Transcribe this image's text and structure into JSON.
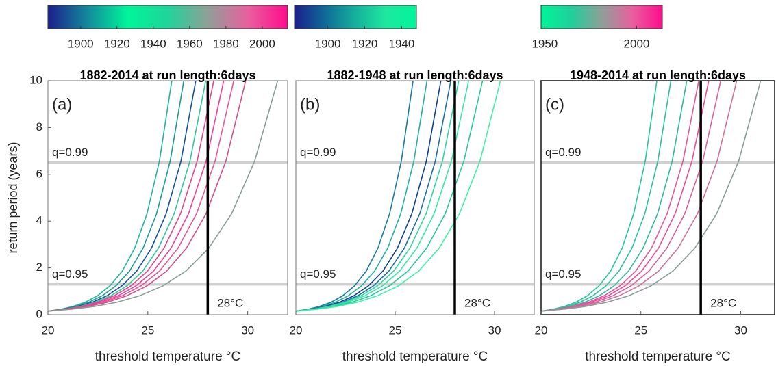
{
  "chart_data": [
    {
      "type": "line",
      "title": "1882-2014 at run length:6days",
      "panel_label": "(a)",
      "xlabel": "threshold temperature °C",
      "ylabel": "return period (years)",
      "xlim": [
        20,
        32
      ],
      "ylim": [
        0,
        10
      ],
      "xticks": [
        20,
        25,
        30
      ],
      "yticks": [
        0,
        2,
        4,
        6,
        8,
        10
      ],
      "hlines": [
        {
          "value": 6.5,
          "label": "q=0.99"
        },
        {
          "value": 1.3,
          "label": "q=0.95"
        }
      ],
      "vline": {
        "value": 28,
        "label": "28°C"
      },
      "colorbar": {
        "lim": [
          1882,
          2014
        ],
        "ticks": [
          1900,
          1920,
          1940,
          1960,
          1980,
          2000
        ],
        "colors": [
          "#1a1f8c",
          "#138a9c",
          "#00f59a",
          "#1fd49a",
          "#8f9f98",
          "#e8609e",
          "#ff0c8c"
        ]
      },
      "series": [
        {
          "color": "#22b59b",
          "x": [
            20,
            20.62,
            21.24,
            21.86,
            22.48,
            23.1,
            23.72,
            24.34,
            24.96,
            25.58,
            26.2
          ],
          "values": [
            0.15,
            0.23,
            0.35,
            0.53,
            0.81,
            1.23,
            1.86,
            2.84,
            4.32,
            6.57,
            10
          ]
        },
        {
          "color": "#1d9a98",
          "x": [
            20,
            20.68,
            21.36,
            22.04,
            22.72,
            23.4,
            24.08,
            24.76,
            25.44,
            26.12,
            26.8
          ],
          "values": [
            0.15,
            0.23,
            0.35,
            0.53,
            0.81,
            1.23,
            1.86,
            2.84,
            4.32,
            6.57,
            10
          ]
        },
        {
          "color": "#12529a",
          "x": [
            20,
            20.74,
            21.48,
            22.22,
            22.96,
            23.7,
            24.44,
            25.18,
            25.92,
            26.66,
            27.4
          ],
          "values": [
            0.15,
            0.23,
            0.35,
            0.53,
            0.81,
            1.23,
            1.86,
            2.84,
            4.32,
            6.57,
            10
          ]
        },
        {
          "color": "#30c49a",
          "x": [
            20,
            20.79,
            21.58,
            22.37,
            23.16,
            23.95,
            24.74,
            25.53,
            26.32,
            27.11,
            27.9
          ],
          "values": [
            0.15,
            0.23,
            0.35,
            0.53,
            0.81,
            1.23,
            1.86,
            2.84,
            4.32,
            6.57,
            10
          ]
        },
        {
          "color": "#e0468e",
          "x": [
            20,
            20.83,
            21.66,
            22.49,
            23.32,
            24.15,
            24.98,
            25.81,
            26.64,
            27.47,
            28.3
          ],
          "values": [
            0.15,
            0.23,
            0.35,
            0.53,
            0.81,
            1.23,
            1.86,
            2.84,
            4.32,
            6.57,
            10
          ]
        },
        {
          "color": "#f0409a",
          "x": [
            20,
            20.88,
            21.76,
            22.64,
            23.52,
            24.4,
            25.28,
            26.16,
            27.04,
            27.92,
            28.8
          ],
          "values": [
            0.15,
            0.23,
            0.35,
            0.53,
            0.81,
            1.23,
            1.86,
            2.84,
            4.32,
            6.57,
            10
          ]
        },
        {
          "color": "#e85596",
          "x": [
            20,
            20.93,
            21.86,
            22.79,
            23.72,
            24.65,
            25.58,
            26.51,
            27.44,
            28.37,
            29.3
          ],
          "values": [
            0.15,
            0.23,
            0.35,
            0.53,
            0.81,
            1.23,
            1.86,
            2.84,
            4.32,
            6.57,
            10
          ]
        },
        {
          "color": "#d04f8c",
          "x": [
            20,
            20.99,
            21.98,
            22.97,
            23.96,
            24.95,
            25.94,
            26.93,
            27.92,
            28.91,
            29.9
          ],
          "values": [
            0.15,
            0.23,
            0.35,
            0.53,
            0.81,
            1.23,
            1.86,
            2.84,
            4.32,
            6.57,
            10
          ]
        },
        {
          "color": "#8a9c98",
          "x": [
            20,
            21.15,
            22.3,
            23.45,
            24.6,
            25.75,
            26.9,
            28.05,
            29.2,
            30.35,
            31.5
          ],
          "values": [
            0.15,
            0.23,
            0.35,
            0.53,
            0.81,
            1.23,
            1.86,
            2.84,
            4.32,
            6.57,
            10
          ]
        }
      ]
    },
    {
      "type": "line",
      "title": "1882-1948 at run length:6days",
      "panel_label": "(b)",
      "xlabel": "threshold temperature °C",
      "xlim": [
        20,
        32
      ],
      "ylim": [
        0,
        10
      ],
      "xticks": [
        20,
        25,
        30
      ],
      "hlines": [
        {
          "value": 6.5,
          "label": "q=0.99"
        },
        {
          "value": 1.3,
          "label": "q=0.95"
        }
      ],
      "vline": {
        "value": 28,
        "label": "28°C"
      },
      "colorbar": {
        "lim": [
          1882,
          1948
        ],
        "ticks": [
          1900,
          1920,
          1940
        ],
        "colors": [
          "#1a1f8c",
          "#0f6a98",
          "#16b09c",
          "#1ee8a0",
          "#00f59a"
        ]
      },
      "series": [
        {
          "color": "#1a7aa0",
          "x": [
            20,
            20.59,
            21.18,
            21.77,
            22.36,
            22.95,
            23.54,
            24.13,
            24.72,
            25.31,
            25.9
          ],
          "values": [
            0.15,
            0.23,
            0.35,
            0.53,
            0.81,
            1.23,
            1.86,
            2.84,
            4.32,
            6.57,
            10
          ]
        },
        {
          "color": "#23b09c",
          "x": [
            20,
            20.66,
            21.32,
            21.98,
            22.64,
            23.3,
            23.96,
            24.62,
            25.28,
            25.94,
            26.6
          ],
          "values": [
            0.15,
            0.23,
            0.35,
            0.53,
            0.81,
            1.23,
            1.86,
            2.84,
            4.32,
            6.57,
            10
          ]
        },
        {
          "color": "#0e3f8e",
          "x": [
            20,
            20.73,
            21.46,
            22.19,
            22.92,
            23.65,
            24.38,
            25.11,
            25.84,
            26.57,
            27.3
          ],
          "values": [
            0.15,
            0.23,
            0.35,
            0.53,
            0.81,
            1.23,
            1.86,
            2.84,
            4.32,
            6.57,
            10
          ]
        },
        {
          "color": "#1e6fa0",
          "x": [
            20,
            20.78,
            21.56,
            22.34,
            23.12,
            23.9,
            24.68,
            25.46,
            26.24,
            27.02,
            27.8
          ],
          "values": [
            0.15,
            0.23,
            0.35,
            0.53,
            0.81,
            1.23,
            1.86,
            2.84,
            4.32,
            6.57,
            10
          ]
        },
        {
          "color": "#2fd6a0",
          "x": [
            20,
            20.82,
            21.64,
            22.46,
            23.28,
            24.1,
            24.92,
            25.74,
            26.56,
            27.38,
            28.2
          ],
          "values": [
            0.15,
            0.23,
            0.35,
            0.53,
            0.81,
            1.23,
            1.86,
            2.84,
            4.32,
            6.57,
            10
          ]
        },
        {
          "color": "#36e8a4",
          "x": [
            20,
            20.87,
            21.74,
            22.61,
            23.48,
            24.35,
            25.22,
            26.09,
            26.96,
            27.83,
            28.7
          ],
          "values": [
            0.15,
            0.23,
            0.35,
            0.53,
            0.81,
            1.23,
            1.86,
            2.84,
            4.32,
            6.57,
            10
          ]
        },
        {
          "color": "#28c89c",
          "x": [
            20,
            20.94,
            21.88,
            22.82,
            23.76,
            24.7,
            25.64,
            26.58,
            27.52,
            28.46,
            29.4
          ],
          "values": [
            0.15,
            0.23,
            0.35,
            0.53,
            0.81,
            1.23,
            1.86,
            2.84,
            4.32,
            6.57,
            10
          ]
        },
        {
          "color": "#3ef0a8",
          "x": [
            20,
            21.03,
            22.06,
            23.09,
            24.12,
            25.15,
            26.18,
            27.21,
            28.24,
            29.27,
            30.3
          ],
          "values": [
            0.15,
            0.23,
            0.35,
            0.53,
            0.81,
            1.23,
            1.86,
            2.84,
            4.32,
            6.57,
            10
          ]
        }
      ]
    },
    {
      "type": "line",
      "title": "1948-2014 at run length:6days",
      "panel_label": "(c)",
      "xlabel": "threshold temperature °C",
      "xlim": [
        20,
        31.7
      ],
      "ylim": [
        0,
        10
      ],
      "xticks": [
        20,
        25,
        30
      ],
      "hlines": [
        {
          "value": 6.5,
          "label": "q=0.99"
        },
        {
          "value": 1.3,
          "label": "q=0.95"
        }
      ],
      "vline": {
        "value": 28,
        "label": "28°C"
      },
      "colorbar": {
        "lim": [
          1948,
          2014
        ],
        "ticks": [
          1950,
          2000
        ],
        "colors": [
          "#00f59a",
          "#1fcf9a",
          "#8f9f98",
          "#e8609e",
          "#ff0c8c"
        ]
      },
      "series": [
        {
          "color": "#23c79d",
          "x": [
            20,
            20.58,
            21.16,
            21.74,
            22.32,
            22.9,
            23.48,
            24.06,
            24.64,
            25.22,
            25.8
          ],
          "values": [
            0.15,
            0.23,
            0.35,
            0.53,
            0.81,
            1.23,
            1.86,
            2.84,
            4.32,
            6.57,
            10
          ]
        },
        {
          "color": "#2cc09c",
          "x": [
            20,
            20.65,
            21.3,
            21.95,
            22.6,
            23.25,
            23.9,
            24.55,
            25.2,
            25.85,
            26.5
          ],
          "values": [
            0.15,
            0.23,
            0.35,
            0.53,
            0.81,
            1.23,
            1.86,
            2.84,
            4.32,
            6.57,
            10
          ]
        },
        {
          "color": "#30b79c",
          "x": [
            20,
            20.73,
            21.46,
            22.19,
            22.92,
            23.65,
            24.38,
            25.11,
            25.84,
            26.57,
            27.3
          ],
          "values": [
            0.15,
            0.23,
            0.35,
            0.53,
            0.81,
            1.23,
            1.86,
            2.84,
            4.32,
            6.57,
            10
          ]
        },
        {
          "color": "#e3579a",
          "x": [
            20,
            20.79,
            21.58,
            22.37,
            23.16,
            23.95,
            24.74,
            25.53,
            26.32,
            27.11,
            27.9
          ],
          "values": [
            0.15,
            0.23,
            0.35,
            0.53,
            0.81,
            1.23,
            1.86,
            2.84,
            4.32,
            6.57,
            10
          ]
        },
        {
          "color": "#ee4a98",
          "x": [
            20,
            20.84,
            21.68,
            22.52,
            23.36,
            24.2,
            25.04,
            25.88,
            26.72,
            27.56,
            28.4
          ],
          "values": [
            0.15,
            0.23,
            0.35,
            0.53,
            0.81,
            1.23,
            1.86,
            2.84,
            4.32,
            6.57,
            10
          ]
        },
        {
          "color": "#d9609a",
          "x": [
            20,
            20.9,
            21.8,
            22.7,
            23.6,
            24.5,
            25.4,
            26.3,
            27.2,
            28.1,
            29
          ],
          "values": [
            0.15,
            0.23,
            0.35,
            0.53,
            0.81,
            1.23,
            1.86,
            2.84,
            4.32,
            6.57,
            10
          ]
        },
        {
          "color": "#c7739a",
          "x": [
            20,
            20.98,
            21.96,
            22.94,
            23.92,
            24.9,
            25.88,
            26.86,
            27.84,
            28.82,
            29.8
          ],
          "values": [
            0.15,
            0.23,
            0.35,
            0.53,
            0.81,
            1.23,
            1.86,
            2.84,
            4.32,
            6.57,
            10
          ]
        },
        {
          "color": "#8a9c98",
          "x": [
            20,
            21.1,
            22.2,
            23.3,
            24.4,
            25.5,
            26.6,
            27.7,
            28.8,
            29.9,
            31
          ],
          "values": [
            0.15,
            0.23,
            0.35,
            0.53,
            0.81,
            1.23,
            1.86,
            2.84,
            4.32,
            6.57,
            10
          ]
        }
      ]
    }
  ]
}
